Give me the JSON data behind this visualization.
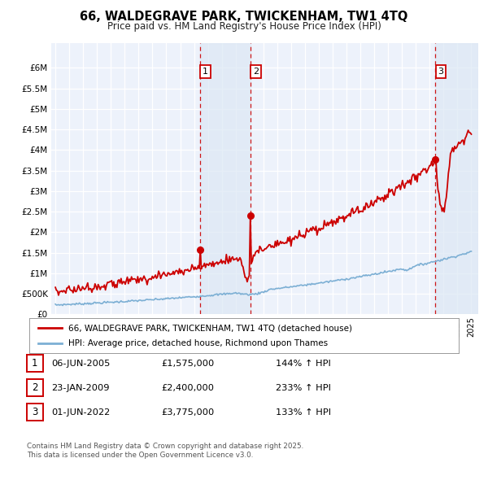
{
  "title": "66, WALDEGRAVE PARK, TWICKENHAM, TW1 4TQ",
  "subtitle": "Price paid vs. HM Land Registry's House Price Index (HPI)",
  "legend_line1": "66, WALDEGRAVE PARK, TWICKENHAM, TW1 4TQ (detached house)",
  "legend_line2": "HPI: Average price, detached house, Richmond upon Thames",
  "sale_color": "#cc0000",
  "hpi_color": "#7cafd4",
  "bg_color": "#edf2fb",
  "grid_color": "#ffffff",
  "transactions": [
    {
      "num": 1,
      "date_label": "06-JUN-2005",
      "price": "£1,575,000",
      "pct": "144% ↑ HPI",
      "x_year": 2005.43,
      "dot_y": 1575000
    },
    {
      "num": 2,
      "date_label": "23-JAN-2009",
      "price": "£2,400,000",
      "pct": "233% ↑ HPI",
      "x_year": 2009.06,
      "dot_y": 2400000
    },
    {
      "num": 3,
      "date_label": "01-JUN-2022",
      "price": "£3,775,000",
      "pct": "133% ↑ HPI",
      "x_year": 2022.42,
      "dot_y": 3775000
    }
  ],
  "footnote1": "Contains HM Land Registry data © Crown copyright and database right 2025.",
  "footnote2": "This data is licensed under the Open Government Licence v3.0.",
  "ylim": [
    0,
    6600000
  ],
  "ytick_max": 6000000,
  "xlim_start": 1994.7,
  "xlim_end": 2025.5,
  "span_color": "#dce8f5",
  "span_alpha": 0.7
}
